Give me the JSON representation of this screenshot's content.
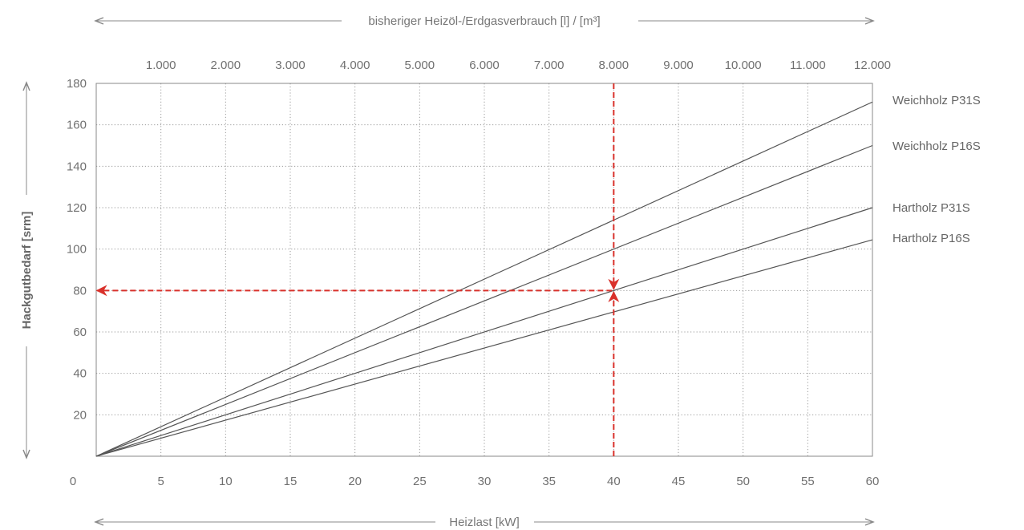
{
  "chart_data": {
    "type": "line",
    "xlabel": "Heizlast [kW]",
    "ylabel": "Hackgutbedarf [srm]",
    "x2label": "bisheriger Heizöl-/Erdgasverbrauch [l] / [m³]",
    "xlim": [
      0,
      60
    ],
    "ylim": [
      0,
      180
    ],
    "x2lim": [
      0,
      12000
    ],
    "x_ticks": [
      0,
      5,
      10,
      15,
      20,
      25,
      30,
      35,
      40,
      45,
      50,
      55,
      60
    ],
    "y_ticks": [
      20,
      40,
      60,
      80,
      100,
      120,
      140,
      160,
      180
    ],
    "x2_ticks": [
      "1.000",
      "2.000",
      "3.000",
      "4.000",
      "5.000",
      "6.000",
      "7.000",
      "8.000",
      "9.000",
      "10.000",
      "11.000",
      "12.000"
    ],
    "grid": true,
    "series": [
      {
        "name": "Weichholz P31S",
        "x": [
          0,
          60
        ],
        "y": [
          0,
          171
        ]
      },
      {
        "name": "Weichholz P16S",
        "x": [
          0,
          60
        ],
        "y": [
          0,
          150
        ]
      },
      {
        "name": "Hartholz P31S",
        "x": [
          0,
          60
        ],
        "y": [
          0,
          120
        ]
      },
      {
        "name": "Hartholz P16S",
        "x": [
          0,
          60
        ],
        "y": [
          0,
          104.5
        ]
      }
    ],
    "example": {
      "x": 40,
      "y": 80,
      "color": "#d9312b"
    },
    "colors": {
      "series_line": "#555555",
      "grid": "#9a9a9a",
      "axis": "#888888",
      "example": "#d9312b"
    }
  }
}
